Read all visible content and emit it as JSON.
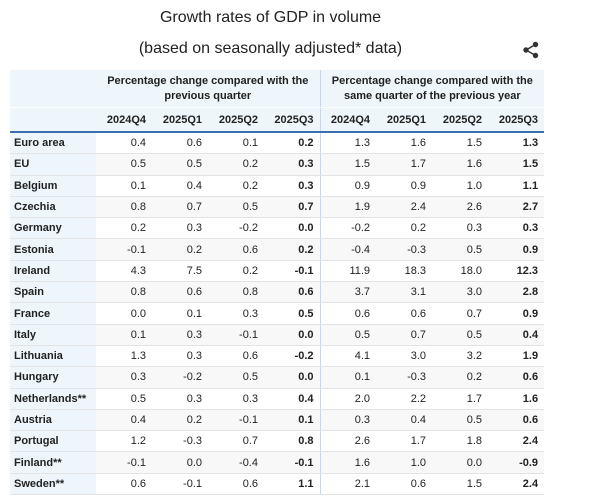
{
  "title": "Growth rates of GDP in volume",
  "subtitle": "(based on seasonally adjusted* data)",
  "share_icon": "share-icon",
  "header": {
    "group1": "Percentage change compared with the previous quarter",
    "group2": "Percentage change compared with the same quarter of the previous year",
    "quarters": [
      "2024Q4",
      "2025Q1",
      "2025Q2",
      "2025Q3"
    ]
  },
  "rows": [
    {
      "country": "Euro area",
      "q": [
        "0.4",
        "0.6",
        "0.1",
        "0.2"
      ],
      "y": [
        "1.3",
        "1.6",
        "1.5",
        "1.3"
      ]
    },
    {
      "country": "EU",
      "q": [
        "0.5",
        "0.5",
        "0.2",
        "0.3"
      ],
      "y": [
        "1.5",
        "1.7",
        "1.6",
        "1.5"
      ]
    },
    {
      "country": "Belgium",
      "q": [
        "0.1",
        "0.4",
        "0.2",
        "0.3"
      ],
      "y": [
        "0.9",
        "0.9",
        "1.0",
        "1.1"
      ]
    },
    {
      "country": "Czechia",
      "q": [
        "0.8",
        "0.7",
        "0.5",
        "0.7"
      ],
      "y": [
        "1.9",
        "2.4",
        "2.6",
        "2.7"
      ]
    },
    {
      "country": "Germany",
      "q": [
        "0.2",
        "0.3",
        "-0.2",
        "0.0"
      ],
      "y": [
        "-0.2",
        "0.2",
        "0.3",
        "0.3"
      ]
    },
    {
      "country": "Estonia",
      "q": [
        "-0.1",
        "0.2",
        "0.6",
        "0.2"
      ],
      "y": [
        "-0.4",
        "-0.3",
        "0.5",
        "0.9"
      ]
    },
    {
      "country": "Ireland",
      "q": [
        "4.3",
        "7.5",
        "0.2",
        "-0.1"
      ],
      "y": [
        "11.9",
        "18.3",
        "18.0",
        "12.3"
      ]
    },
    {
      "country": "Spain",
      "q": [
        "0.8",
        "0.6",
        "0.8",
        "0.6"
      ],
      "y": [
        "3.7",
        "3.1",
        "3.0",
        "2.8"
      ]
    },
    {
      "country": "France",
      "q": [
        "0.0",
        "0.1",
        "0.3",
        "0.5"
      ],
      "y": [
        "0.6",
        "0.6",
        "0.7",
        "0.9"
      ]
    },
    {
      "country": "Italy",
      "q": [
        "0.1",
        "0.3",
        "-0.1",
        "0.0"
      ],
      "y": [
        "0.5",
        "0.7",
        "0.5",
        "0.4"
      ]
    },
    {
      "country": "Lithuania",
      "q": [
        "1.3",
        "0.3",
        "0.6",
        "-0.2"
      ],
      "y": [
        "4.1",
        "3.0",
        "3.2",
        "1.9"
      ]
    },
    {
      "country": "Hungary",
      "q": [
        "0.3",
        "-0.2",
        "0.5",
        "0.0"
      ],
      "y": [
        "0.1",
        "-0.3",
        "0.2",
        "0.6"
      ]
    },
    {
      "country": "Netherlands**",
      "q": [
        "0.5",
        "0.3",
        "0.3",
        "0.4"
      ],
      "y": [
        "2.0",
        "2.2",
        "1.7",
        "1.6"
      ]
    },
    {
      "country": "Austria",
      "q": [
        "0.4",
        "0.2",
        "-0.1",
        "0.1"
      ],
      "y": [
        "0.3",
        "0.4",
        "0.5",
        "0.6"
      ]
    },
    {
      "country": "Portugal",
      "q": [
        "1.2",
        "-0.3",
        "0.7",
        "0.8"
      ],
      "y": [
        "2.6",
        "1.7",
        "1.8",
        "2.4"
      ]
    },
    {
      "country": "Finland**",
      "q": [
        "-0.1",
        "0.0",
        "-0.4",
        "-0.1"
      ],
      "y": [
        "1.6",
        "1.0",
        "0.0",
        "-0.9"
      ]
    },
    {
      "country": "Sweden**",
      "q": [
        "0.6",
        "-0.1",
        "0.6",
        "1.1"
      ],
      "y": [
        "2.1",
        "0.6",
        "1.5",
        "2.4"
      ]
    }
  ]
}
